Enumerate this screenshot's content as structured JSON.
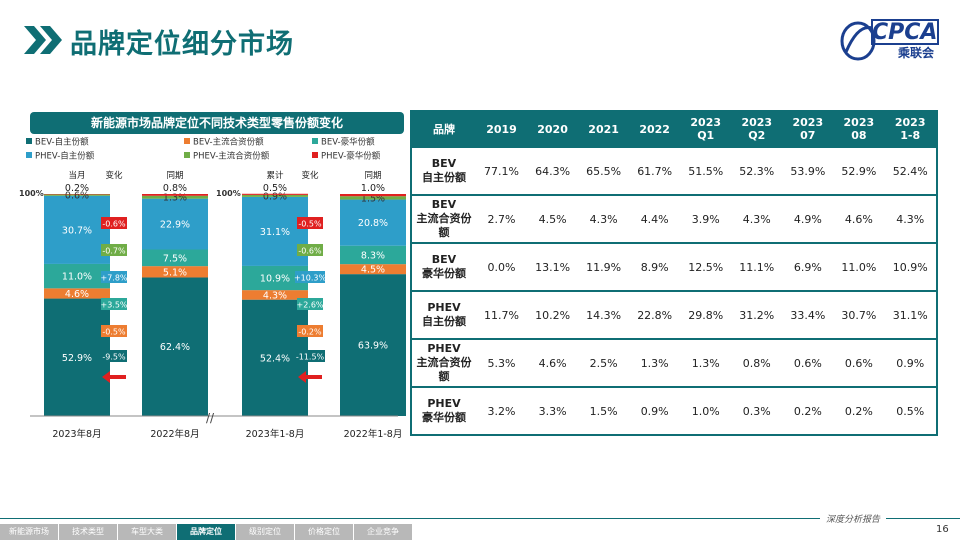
{
  "header": {
    "title": "品牌定位细分市场",
    "logo_text": "CPCA",
    "logo_sub": "乘联会"
  },
  "chart_data": {
    "type": "bar",
    "title": "新能源市场品牌定位不同技术类型零售份额变化",
    "legend": [
      "BEV-自主份额",
      "BEV-主流合资份额",
      "BEV-豪华份额",
      "PHEV-自主份额",
      "PHEV-主流合资份额",
      "PHEV-豪华份额"
    ],
    "colors": {
      "BEV-自主份额": "#0f6e74",
      "BEV-主流合资份额": "#ed7d31",
      "BEV-豪华份额": "#2ca89a",
      "PHEV-自主份额": "#2e9ec9",
      "PHEV-主流合资份额": "#70ad47",
      "PHEV-豪华份额": "#e02020"
    },
    "ylim": [
      0,
      100
    ],
    "y_top_label": "100%",
    "categories": [
      "2023年8月",
      "2022年8月",
      "2023年1-8月",
      "2022年1-8月"
    ],
    "column_headers": [
      "当月",
      "同期",
      "累计",
      "同期"
    ],
    "series": [
      {
        "name": "BEV-自主份额",
        "values": [
          52.9,
          62.4,
          52.4,
          63.9
        ]
      },
      {
        "name": "BEV-主流合资份额",
        "values": [
          4.6,
          5.1,
          4.3,
          4.5
        ]
      },
      {
        "name": "BEV-豪华份额",
        "values": [
          11.0,
          7.5,
          10.9,
          8.3
        ]
      },
      {
        "name": "PHEV-自主份额",
        "values": [
          30.7,
          22.9,
          31.1,
          20.8
        ]
      },
      {
        "name": "PHEV-主流合资份额",
        "values": [
          0.6,
          1.3,
          0.9,
          1.5
        ]
      },
      {
        "name": "PHEV-豪华份额",
        "values": [
          0.2,
          0.8,
          0.5,
          1.0
        ]
      }
    ],
    "change_header": "变化",
    "changes": [
      [
        "-0.6%",
        "-0.7%",
        "+7.8%",
        "+3.5%",
        "-0.5%",
        "-9.5%"
      ],
      [
        "-0.5%",
        "-0.6%",
        "+10.3%",
        "+2.6%",
        "-0.2%",
        "-11.5%"
      ]
    ],
    "break_mark": "//"
  },
  "table": {
    "headers": [
      "品牌",
      "2019",
      "2020",
      "2021",
      "2022",
      "2023\nQ1",
      "2023\nQ2",
      "2023\n07",
      "2023\n08",
      "2023\n1-8"
    ],
    "rows": [
      {
        "label": "BEV\n自主份额",
        "values": [
          "77.1%",
          "64.3%",
          "65.5%",
          "61.7%",
          "51.5%",
          "52.3%",
          "53.9%",
          "52.9%",
          "52.4%"
        ]
      },
      {
        "label": "BEV\n主流合资份额",
        "values": [
          "2.7%",
          "4.5%",
          "4.3%",
          "4.4%",
          "3.9%",
          "4.3%",
          "4.9%",
          "4.6%",
          "4.3%"
        ]
      },
      {
        "label": "BEV\n豪华份额",
        "values": [
          "0.0%",
          "13.1%",
          "11.9%",
          "8.9%",
          "12.5%",
          "11.1%",
          "6.9%",
          "11.0%",
          "10.9%"
        ]
      },
      {
        "label": "PHEV\n自主份额",
        "values": [
          "11.7%",
          "10.2%",
          "14.3%",
          "22.8%",
          "29.8%",
          "31.2%",
          "33.4%",
          "30.7%",
          "31.1%"
        ]
      },
      {
        "label": "PHEV\n主流合资份额",
        "values": [
          "5.3%",
          "4.6%",
          "2.5%",
          "1.3%",
          "1.3%",
          "0.8%",
          "0.6%",
          "0.6%",
          "0.9%"
        ]
      },
      {
        "label": "PHEV\n豪华份额",
        "values": [
          "3.2%",
          "3.3%",
          "1.5%",
          "0.9%",
          "1.0%",
          "0.3%",
          "0.2%",
          "0.2%",
          "0.5%"
        ]
      }
    ]
  },
  "footer": {
    "note": "深度分析报告",
    "page": "16",
    "nav": [
      "新能源市场",
      "技术类型",
      "车型大类",
      "品牌定位",
      "级别定位",
      "价格定位",
      "企业竞争"
    ],
    "active_nav": "品牌定位"
  }
}
